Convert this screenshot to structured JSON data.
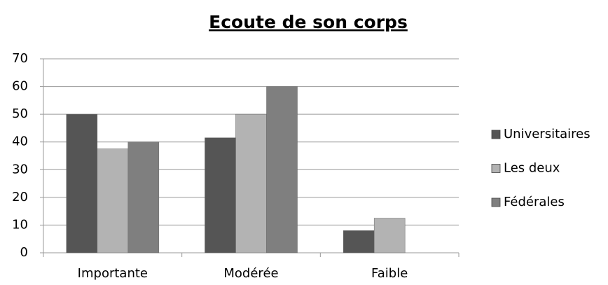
{
  "chart_data": {
    "type": "bar",
    "title": "Ecoute de son corps",
    "categories": [
      "Importante",
      "Modérée",
      "Faible"
    ],
    "series": [
      {
        "name": "Universitaires",
        "color": "#555555",
        "values": [
          50,
          41.5,
          8
        ]
      },
      {
        "name": "Les deux",
        "color": "#b3b3b3",
        "values": [
          37.5,
          50,
          12.5
        ]
      },
      {
        "name": "Fédérales",
        "color": "#7f7f7f",
        "values": [
          40,
          60,
          0
        ]
      }
    ],
    "ylim": [
      0,
      70
    ],
    "yticks": [
      0,
      10,
      20,
      30,
      40,
      50,
      60,
      70
    ],
    "grid": true,
    "legend": "right"
  }
}
